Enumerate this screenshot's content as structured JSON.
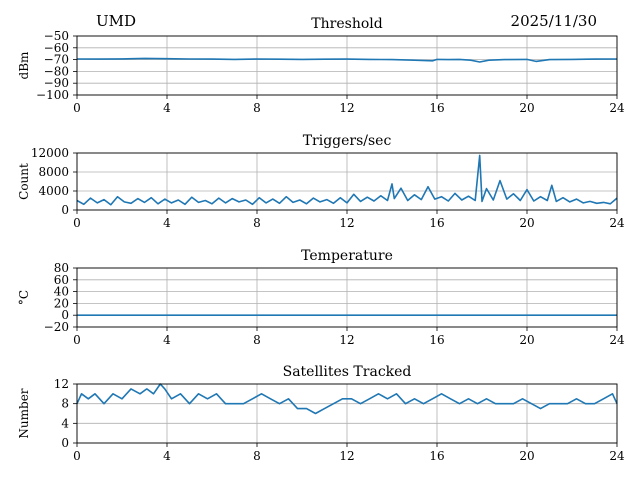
{
  "header": {
    "site": "UMD",
    "date": "2025/11/30"
  },
  "style": {
    "line_color": "#1f77b4",
    "grid_color": "#b0b0b0"
  },
  "chart_data": [
    {
      "type": "line",
      "title": "Threshold",
      "ylabel": "dBm",
      "xlim": [
        0,
        24
      ],
      "ylim": [
        -100,
        -50
      ],
      "xticks": [
        0,
        4,
        8,
        12,
        16,
        20,
        24
      ],
      "yticks": [
        -100,
        -90,
        -80,
        -70,
        -60,
        -50
      ],
      "ytick_labels": [
        "−100",
        "−90",
        "−80",
        "−70",
        "−60",
        "−50"
      ],
      "grid": true,
      "series": [
        {
          "x": [
            0,
            1,
            2,
            3,
            4,
            5,
            6,
            7,
            8,
            9,
            10,
            11,
            12,
            13,
            14,
            15,
            15.8,
            16,
            16.5,
            17,
            17.5,
            17.9,
            18.3,
            19,
            20,
            20.4,
            21,
            22,
            23,
            24
          ],
          "y": [
            -69.5,
            -69.6,
            -69.4,
            -69,
            -69.2,
            -69.5,
            -69.6,
            -69.8,
            -69.5,
            -69.7,
            -69.8,
            -69.7,
            -69.6,
            -69.8,
            -70,
            -70.5,
            -71,
            -69.8,
            -70,
            -69.8,
            -70.5,
            -72,
            -70.5,
            -70,
            -69.8,
            -71.5,
            -70,
            -69.8,
            -69.6,
            -69.5
          ]
        }
      ]
    },
    {
      "type": "line",
      "title": "Triggers/sec",
      "ylabel": "Count",
      "xlim": [
        0,
        24
      ],
      "ylim": [
        0,
        12000
      ],
      "xticks": [
        0,
        4,
        8,
        12,
        16,
        20,
        24
      ],
      "yticks": [
        0,
        4000,
        8000,
        12000
      ],
      "grid": true,
      "series": [
        {
          "x": [
            0,
            0.3,
            0.6,
            0.9,
            1.2,
            1.5,
            1.8,
            2.1,
            2.4,
            2.7,
            3,
            3.3,
            3.6,
            3.9,
            4.2,
            4.5,
            4.8,
            5.1,
            5.4,
            5.7,
            6,
            6.3,
            6.6,
            6.9,
            7.2,
            7.5,
            7.8,
            8.1,
            8.4,
            8.7,
            9,
            9.3,
            9.6,
            9.9,
            10.2,
            10.5,
            10.8,
            11.1,
            11.4,
            11.7,
            12,
            12.3,
            12.6,
            12.9,
            13.2,
            13.5,
            13.8,
            14,
            14.1,
            14.4,
            14.7,
            15,
            15.3,
            15.6,
            15.9,
            16.2,
            16.5,
            16.8,
            17.1,
            17.4,
            17.7,
            17.9,
            18,
            18.2,
            18.5,
            18.8,
            19.1,
            19.4,
            19.7,
            20,
            20.3,
            20.6,
            20.9,
            21.1,
            21.3,
            21.6,
            21.9,
            22.2,
            22.5,
            22.8,
            23.1,
            23.4,
            23.7,
            24
          ],
          "y": [
            2000,
            1200,
            2500,
            1500,
            2200,
            1100,
            2800,
            1700,
            1400,
            2400,
            1600,
            2600,
            1300,
            2300,
            1500,
            2100,
            1200,
            2700,
            1600,
            2000,
            1300,
            2500,
            1500,
            2400,
            1700,
            2100,
            1200,
            2600,
            1500,
            2300,
            1400,
            2800,
            1600,
            2100,
            1300,
            2500,
            1700,
            2200,
            1400,
            2600,
            1500,
            3300,
            1800,
            2700,
            1900,
            3000,
            2000,
            5500,
            2400,
            4600,
            2000,
            3200,
            2200,
            4900,
            2300,
            2800,
            1900,
            3500,
            2100,
            2900,
            2000,
            11500,
            1800,
            4500,
            2100,
            6200,
            2300,
            3400,
            2000,
            4300,
            1900,
            2800,
            2000,
            5200,
            1800,
            2600,
            1700,
            2300,
            1500,
            1800,
            1400,
            1600,
            1300,
            2500
          ]
        }
      ]
    },
    {
      "type": "line",
      "title": "Temperature",
      "ylabel": "°C",
      "xlim": [
        0,
        24
      ],
      "ylim": [
        -20,
        80
      ],
      "xticks": [
        0,
        4,
        8,
        12,
        16,
        20,
        24
      ],
      "yticks": [
        -20,
        0,
        20,
        40,
        60,
        80
      ],
      "ytick_labels": [
        "−20",
        "0",
        "20",
        "40",
        "60",
        "80"
      ],
      "grid": true,
      "series": [
        {
          "x": [
            0,
            24
          ],
          "y": [
            0,
            0
          ]
        }
      ]
    },
    {
      "type": "line",
      "title": "Satellites Tracked",
      "ylabel": "Number",
      "xlim": [
        0,
        24
      ],
      "ylim": [
        0,
        12
      ],
      "xticks": [
        0,
        4,
        8,
        12,
        16,
        20,
        24
      ],
      "yticks": [
        0,
        4,
        8,
        12
      ],
      "grid": true,
      "series": [
        {
          "x": [
            0,
            0.2,
            0.5,
            0.8,
            1.2,
            1.6,
            2.0,
            2.4,
            2.8,
            3.1,
            3.4,
            3.7,
            3.9,
            4.2,
            4.6,
            5.0,
            5.4,
            5.8,
            6.2,
            6.6,
            7.0,
            7.4,
            7.8,
            8.2,
            8.6,
            9.0,
            9.4,
            9.8,
            10.2,
            10.6,
            11.0,
            11.4,
            11.8,
            12.2,
            12.6,
            13.0,
            13.4,
            13.8,
            14.2,
            14.6,
            15.0,
            15.4,
            15.8,
            16.2,
            16.6,
            17.0,
            17.4,
            17.8,
            18.2,
            18.6,
            19.0,
            19.4,
            19.8,
            20.2,
            20.6,
            21.0,
            21.4,
            21.8,
            22.2,
            22.6,
            23.0,
            23.4,
            23.8,
            24
          ],
          "y": [
            8,
            10,
            9,
            10,
            8,
            10,
            9,
            11,
            10,
            11,
            10,
            12,
            11,
            9,
            10,
            8,
            10,
            9,
            10,
            8,
            8,
            8,
            9,
            10,
            9,
            8,
            9,
            7,
            7,
            6,
            7,
            8,
            9,
            9,
            8,
            9,
            10,
            9,
            10,
            8,
            9,
            8,
            9,
            10,
            9,
            8,
            9,
            8,
            9,
            8,
            8,
            8,
            9,
            8,
            7,
            8,
            8,
            8,
            9,
            8,
            8,
            9,
            10,
            8
          ]
        }
      ]
    }
  ]
}
